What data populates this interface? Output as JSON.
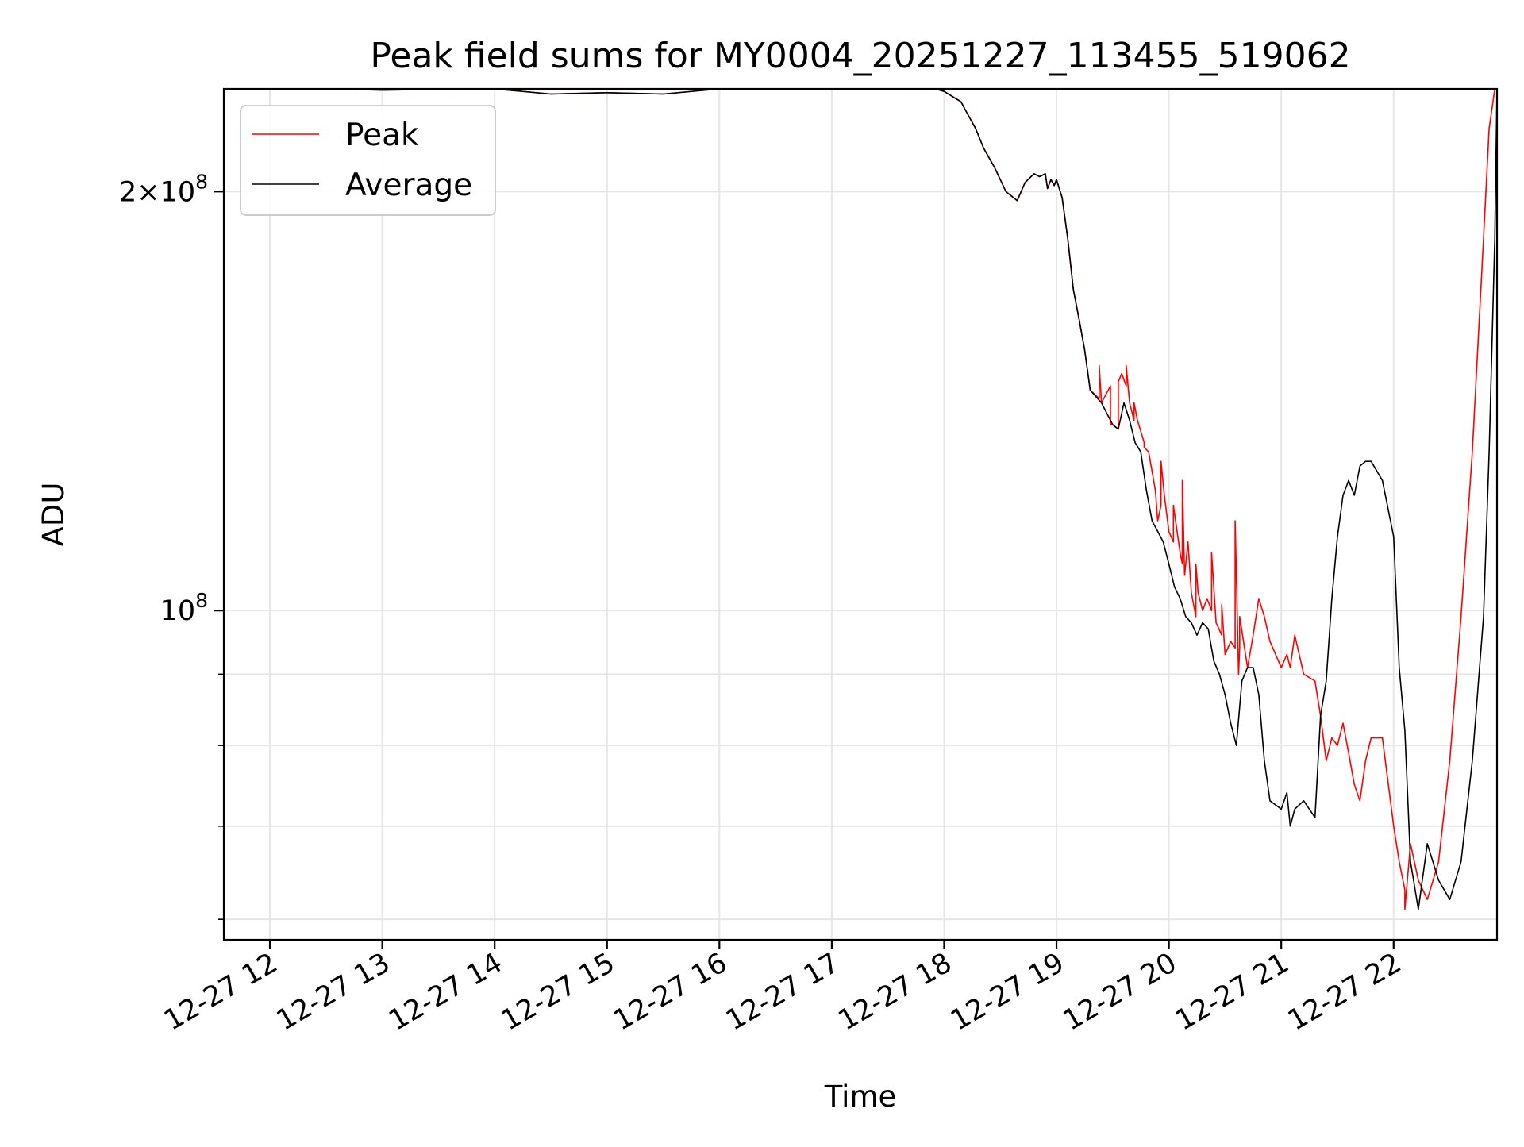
{
  "chart_data": {
    "type": "line",
    "title": "Peak field sums for MY0004_20251227_113455_519062",
    "xlabel": "Time",
    "ylabel": "ADU",
    "yscale": "log",
    "xlim_hours": [
      11.59,
      22.92
    ],
    "ylim": [
      58000000,
      237000000
    ],
    "grid": true,
    "legend_position": "upper-left",
    "x_ticks": [
      {
        "value": 12,
        "label": "12-27 12"
      },
      {
        "value": 13,
        "label": "12-27 13"
      },
      {
        "value": 14,
        "label": "12-27 14"
      },
      {
        "value": 15,
        "label": "12-27 15"
      },
      {
        "value": 16,
        "label": "12-27 16"
      },
      {
        "value": 17,
        "label": "12-27 17"
      },
      {
        "value": 18,
        "label": "12-27 18"
      },
      {
        "value": 19,
        "label": "12-27 19"
      },
      {
        "value": 20,
        "label": "12-27 20"
      },
      {
        "value": 21,
        "label": "12-27 21"
      },
      {
        "value": 22,
        "label": "12-27 22"
      }
    ],
    "y_major_ticks": [
      {
        "value": 100000000,
        "base": "10",
        "exp": "8",
        "coef": ""
      },
      {
        "value": 200000000,
        "base": "10",
        "exp": "8",
        "coef": "2×"
      }
    ],
    "y_minor_ticks": [
      60000000,
      70000000,
      80000000,
      90000000
    ],
    "series": [
      {
        "name": "Peak",
        "color": "#ff0000",
        "x": [
          11.59,
          12.5,
          13.0,
          13.5,
          14.0,
          14.5,
          15.0,
          15.5,
          16.0,
          16.5,
          17.0,
          17.5,
          17.8,
          17.92,
          18.0,
          18.15,
          18.2,
          18.28,
          18.35,
          18.45,
          18.55,
          18.65,
          18.72,
          18.8,
          18.85,
          18.9,
          18.92,
          18.95,
          18.98,
          19.0,
          19.05,
          19.1,
          19.15,
          19.2,
          19.25,
          19.3,
          19.38,
          19.38,
          19.4,
          19.48,
          19.48,
          19.5,
          19.55,
          19.55,
          19.58,
          19.62,
          19.62,
          19.65,
          19.69,
          19.69,
          19.72,
          19.78,
          19.78,
          19.82,
          19.88,
          19.9,
          19.93,
          19.93,
          19.96,
          20.0,
          20.04,
          20.04,
          20.08,
          20.1,
          20.12,
          20.12,
          20.14,
          20.17,
          20.2,
          20.24,
          20.24,
          20.26,
          20.3,
          20.34,
          20.38,
          20.38,
          20.42,
          20.47,
          20.47,
          20.5,
          20.55,
          20.59,
          20.59,
          20.62,
          20.63,
          20.63,
          20.7,
          20.75,
          20.8,
          20.85,
          20.9,
          21.0,
          21.05,
          21.08,
          21.12,
          21.2,
          21.3,
          21.35,
          21.4,
          21.45,
          21.5,
          21.55,
          21.6,
          21.65,
          21.7,
          21.75,
          21.8,
          21.9,
          22.0,
          22.05,
          22.1,
          22.1,
          22.15,
          22.22,
          22.3,
          22.4,
          22.5,
          22.6,
          22.7,
          22.8,
          22.85,
          22.9,
          22.92
        ],
        "values": [
          237000000,
          237000000,
          236500000,
          236800000,
          237000000,
          235000000,
          235500000,
          235000000,
          237000000,
          237000000,
          237000000,
          237000000,
          236800000,
          237000000,
          236000000,
          232000000,
          228000000,
          222000000,
          215000000,
          208000000,
          200000000,
          197000000,
          203000000,
          206000000,
          205000000,
          206000000,
          201000000,
          204000000,
          202000000,
          204000000,
          198000000,
          185000000,
          170000000,
          162000000,
          154000000,
          144000000,
          142000000,
          150000000,
          141000000,
          145000000,
          136000000,
          136000000,
          135000000,
          146000000,
          148000000,
          145000000,
          150000000,
          141000000,
          137000000,
          141000000,
          137000000,
          132000000,
          131000000,
          130000000,
          122000000,
          116000000,
          119000000,
          128000000,
          121000000,
          114000000,
          112000000,
          119000000,
          113000000,
          110000000,
          108000000,
          124000000,
          106000000,
          112000000,
          103000000,
          99000000,
          108000000,
          103000000,
          100000000,
          102000000,
          100000000,
          110000000,
          98000000,
          96000000,
          101000000,
          93000000,
          95000000,
          94000000,
          116000000,
          90000000,
          94000000,
          99000000,
          91000000,
          96000000,
          102000000,
          99000000,
          95000000,
          91000000,
          93000000,
          91000000,
          96000000,
          90000000,
          89000000,
          84000000,
          78000000,
          81000000,
          80000000,
          83000000,
          79000000,
          75000000,
          73000000,
          78000000,
          81000000,
          81000000,
          70000000,
          66000000,
          63000000,
          61000000,
          68000000,
          64000000,
          62000000,
          66000000,
          78000000,
          99000000,
          130000000,
          185000000,
          222000000,
          237000000,
          237000000
        ]
      },
      {
        "name": "Average",
        "color": "#000000",
        "x": [
          11.59,
          12.5,
          13.0,
          13.5,
          14.0,
          14.5,
          15.0,
          15.5,
          16.0,
          16.5,
          17.0,
          17.5,
          17.8,
          17.92,
          18.0,
          18.15,
          18.2,
          18.28,
          18.35,
          18.45,
          18.55,
          18.65,
          18.72,
          18.8,
          18.85,
          18.9,
          18.92,
          18.95,
          18.98,
          19.0,
          19.05,
          19.1,
          19.15,
          19.2,
          19.25,
          19.3,
          19.4,
          19.5,
          19.55,
          19.6,
          19.65,
          19.7,
          19.75,
          19.8,
          19.85,
          19.9,
          19.95,
          20.0,
          20.05,
          20.1,
          20.15,
          20.2,
          20.25,
          20.3,
          20.35,
          20.4,
          20.45,
          20.5,
          20.55,
          20.6,
          20.65,
          20.7,
          20.75,
          20.8,
          20.85,
          20.9,
          21.0,
          21.05,
          21.08,
          21.12,
          21.2,
          21.3,
          21.35,
          21.4,
          21.45,
          21.5,
          21.55,
          21.6,
          21.65,
          21.7,
          21.75,
          21.8,
          21.9,
          22.0,
          22.05,
          22.1,
          22.15,
          22.22,
          22.3,
          22.4,
          22.5,
          22.6,
          22.7,
          22.8,
          22.85,
          22.9,
          22.92
        ],
        "values": [
          237000000,
          237000000,
          236500000,
          236800000,
          237000000,
          235000000,
          235500000,
          235000000,
          237000000,
          237000000,
          237000000,
          237000000,
          236800000,
          237000000,
          236000000,
          232000000,
          228000000,
          222000000,
          215000000,
          208000000,
          200000000,
          197000000,
          203000000,
          206000000,
          205000000,
          206000000,
          201000000,
          204000000,
          202000000,
          204000000,
          198000000,
          185000000,
          170000000,
          162000000,
          154000000,
          144000000,
          141000000,
          136000000,
          135000000,
          141000000,
          137000000,
          132000000,
          130000000,
          122000000,
          116000000,
          114000000,
          112000000,
          108000000,
          104000000,
          102000000,
          99000000,
          98000000,
          96000000,
          98000000,
          97000000,
          92000000,
          90000000,
          87000000,
          83000000,
          80000000,
          89000000,
          91000000,
          91000000,
          87000000,
          78000000,
          73000000,
          72000000,
          74000000,
          70000000,
          72000000,
          73000000,
          71000000,
          84000000,
          89000000,
          102000000,
          113000000,
          121000000,
          124000000,
          121000000,
          127000000,
          128000000,
          128000000,
          124000000,
          113000000,
          91000000,
          82000000,
          66000000,
          61000000,
          68000000,
          64000000,
          62000000,
          66000000,
          78000000,
          99000000,
          130000000,
          185000000,
          237000000
        ]
      }
    ]
  }
}
